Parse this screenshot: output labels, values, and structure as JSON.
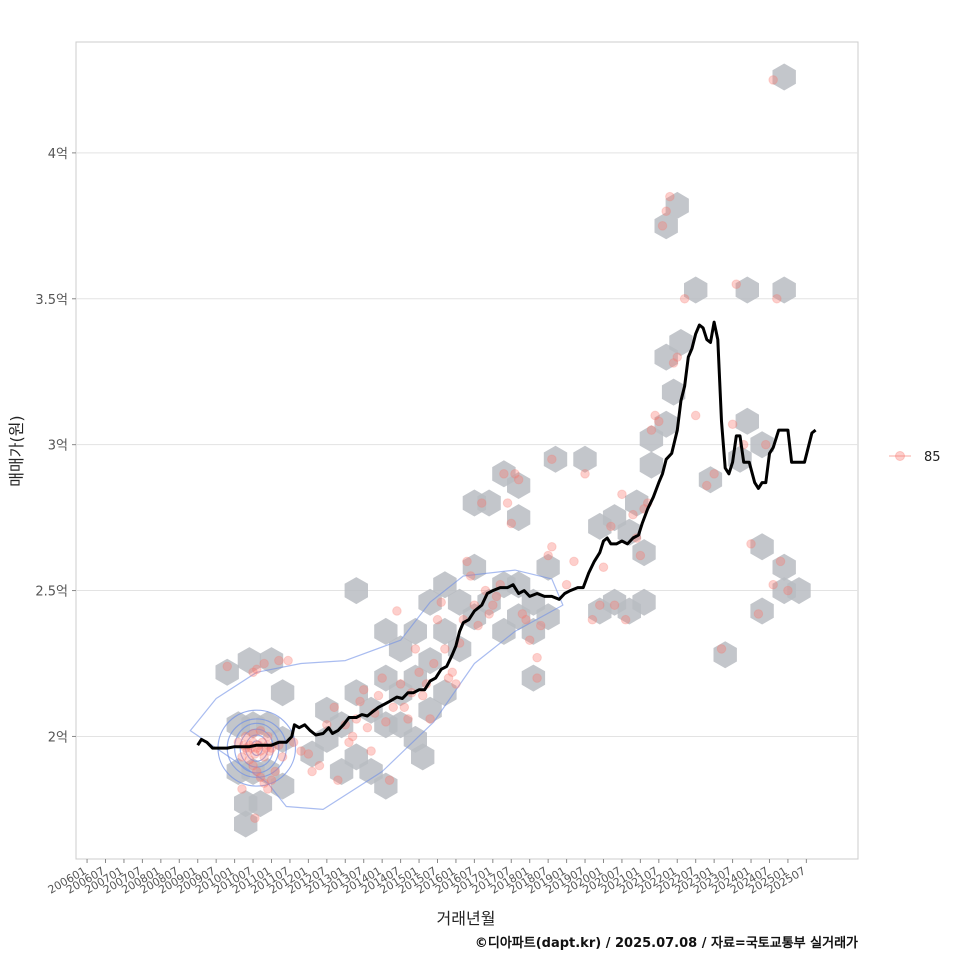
{
  "chart_data": {
    "type": "scatter",
    "xlabel": "거래년월",
    "ylabel": "매매가(원)",
    "caption": "©디아파트(dapt.kr) / 2025.07.08 / 자료=국토교통부 실거래가",
    "y_ticks": [
      {
        "value": 2.0,
        "label": "2억"
      },
      {
        "value": 2.5,
        "label": "2.5억"
      },
      {
        "value": 3.0,
        "label": "3억"
      },
      {
        "value": 3.5,
        "label": "3.5억"
      },
      {
        "value": 4.0,
        "label": "4억"
      }
    ],
    "x_ticks": [
      "200601",
      "200607",
      "200701",
      "200707",
      "200801",
      "200807",
      "200901",
      "200907",
      "201001",
      "201007",
      "201101",
      "201107",
      "201201",
      "201207",
      "201301",
      "201307",
      "201401",
      "201407",
      "201501",
      "201507",
      "201601",
      "201607",
      "201701",
      "201707",
      "201801",
      "201807",
      "201901",
      "201907",
      "202001",
      "202007",
      "202101",
      "202107",
      "202201",
      "202207",
      "202301",
      "202307",
      "202401",
      "202407",
      "202501",
      "202507"
    ],
    "ylim": [
      1.58,
      4.38
    ],
    "xlim": [
      2005.7,
      2026.9
    ],
    "grid": true,
    "legend": {
      "position": "right",
      "entries": [
        {
          "name": "85",
          "color": "#f8766d"
        }
      ]
    },
    "colors": {
      "points": "#f8766d",
      "hex": "#b8bcc2",
      "trend": "#000000",
      "density": "#6f8fe6"
    },
    "points": [
      [
        2010.25,
        1.97
      ],
      [
        2010.3,
        1.96
      ],
      [
        2010.35,
        1.95
      ],
      [
        2010.4,
        1.97
      ],
      [
        2010.45,
        1.96
      ],
      [
        2010.5,
        1.98
      ],
      [
        2010.55,
        1.94
      ],
      [
        2010.6,
        1.96
      ],
      [
        2010.65,
        1.97
      ],
      [
        2010.7,
        1.95
      ],
      [
        2010.75,
        1.98
      ],
      [
        2010.8,
        1.93
      ],
      [
        2010.85,
        1.96
      ],
      [
        2010.9,
        1.97
      ],
      [
        2010.95,
        1.95
      ],
      [
        2011.0,
        1.96
      ],
      [
        2010.4,
        1.92
      ],
      [
        2010.5,
        1.9
      ],
      [
        2010.6,
        1.88
      ],
      [
        2010.7,
        1.86
      ],
      [
        2010.8,
        1.84
      ],
      [
        2010.9,
        1.82
      ],
      [
        2011.0,
        1.85
      ],
      [
        2011.1,
        1.88
      ],
      [
        2010.3,
        2.0
      ],
      [
        2010.5,
        2.01
      ],
      [
        2010.7,
        2.02
      ],
      [
        2010.9,
        2.0
      ],
      [
        2011.2,
        1.97
      ],
      [
        2011.3,
        1.93
      ],
      [
        2010.2,
        1.93
      ],
      [
        2010.1,
        1.98
      ],
      [
        2009.8,
        2.24
      ],
      [
        2010.5,
        2.22
      ],
      [
        2010.8,
        2.25
      ],
      [
        2011.2,
        2.26
      ],
      [
        2011.45,
        2.26
      ],
      [
        2010.6,
        2.23
      ],
      [
        2010.55,
        1.72
      ],
      [
        2010.2,
        1.82
      ],
      [
        2011.6,
        1.98
      ],
      [
        2011.8,
        1.95
      ],
      [
        2012.0,
        1.94
      ],
      [
        2012.1,
        1.88
      ],
      [
        2012.3,
        1.9
      ],
      [
        2012.5,
        2.04
      ],
      [
        2012.7,
        2.1
      ],
      [
        2012.8,
        1.85
      ],
      [
        2013.0,
        2.04
      ],
      [
        2013.1,
        1.98
      ],
      [
        2013.2,
        2.0
      ],
      [
        2013.3,
        2.06
      ],
      [
        2013.4,
        2.12
      ],
      [
        2013.5,
        2.16
      ],
      [
        2013.6,
        2.03
      ],
      [
        2013.7,
        1.95
      ],
      [
        2013.8,
        2.08
      ],
      [
        2013.9,
        2.14
      ],
      [
        2014.0,
        2.2
      ],
      [
        2014.1,
        2.05
      ],
      [
        2014.2,
        1.85
      ],
      [
        2014.3,
        2.1
      ],
      [
        2014.4,
        2.43
      ],
      [
        2014.5,
        2.18
      ],
      [
        2014.6,
        2.1
      ],
      [
        2014.7,
        2.06
      ],
      [
        2014.8,
        2.15
      ],
      [
        2014.9,
        2.3
      ],
      [
        2015.0,
        2.22
      ],
      [
        2015.1,
        2.14
      ],
      [
        2015.2,
        2.18
      ],
      [
        2015.3,
        2.06
      ],
      [
        2015.4,
        2.25
      ],
      [
        2015.5,
        2.4
      ],
      [
        2015.6,
        2.46
      ],
      [
        2015.7,
        2.3
      ],
      [
        2015.8,
        2.2
      ],
      [
        2015.9,
        2.22
      ],
      [
        2016.0,
        2.18
      ],
      [
        2016.1,
        2.32
      ],
      [
        2016.2,
        2.4
      ],
      [
        2016.3,
        2.6
      ],
      [
        2016.4,
        2.55
      ],
      [
        2016.5,
        2.45
      ],
      [
        2016.6,
        2.38
      ],
      [
        2016.7,
        2.8
      ],
      [
        2016.8,
        2.5
      ],
      [
        2016.9,
        2.42
      ],
      [
        2017.0,
        2.45
      ],
      [
        2017.1,
        2.48
      ],
      [
        2017.2,
        2.52
      ],
      [
        2017.3,
        2.9
      ],
      [
        2017.4,
        2.8
      ],
      [
        2017.5,
        2.73
      ],
      [
        2017.6,
        2.9
      ],
      [
        2017.7,
        2.88
      ],
      [
        2017.8,
        2.42
      ],
      [
        2017.9,
        2.4
      ],
      [
        2018.0,
        2.33
      ],
      [
        2018.2,
        2.27
      ],
      [
        2018.3,
        2.38
      ],
      [
        2018.5,
        2.62
      ],
      [
        2018.6,
        2.65
      ],
      [
        2018.2,
        2.2
      ],
      [
        2018.6,
        2.95
      ],
      [
        2019.0,
        2.52
      ],
      [
        2019.2,
        2.6
      ],
      [
        2019.5,
        2.9
      ],
      [
        2019.7,
        2.4
      ],
      [
        2019.9,
        2.45
      ],
      [
        2020.0,
        2.58
      ],
      [
        2020.2,
        2.72
      ],
      [
        2020.3,
        2.45
      ],
      [
        2020.5,
        2.83
      ],
      [
        2020.6,
        2.4
      ],
      [
        2020.8,
        2.76
      ],
      [
        2020.9,
        2.68
      ],
      [
        2021.0,
        2.62
      ],
      [
        2021.1,
        2.78
      ],
      [
        2021.2,
        2.8
      ],
      [
        2021.3,
        3.05
      ],
      [
        2021.4,
        3.1
      ],
      [
        2021.5,
        3.08
      ],
      [
        2021.6,
        3.75
      ],
      [
        2021.7,
        3.8
      ],
      [
        2021.8,
        3.85
      ],
      [
        2021.9,
        3.28
      ],
      [
        2022.0,
        3.3
      ],
      [
        2022.2,
        3.5
      ],
      [
        2022.5,
        3.1
      ],
      [
        2022.8,
        2.86
      ],
      [
        2023.0,
        2.9
      ],
      [
        2023.2,
        2.3
      ],
      [
        2023.5,
        3.07
      ],
      [
        2023.6,
        3.55
      ],
      [
        2023.8,
        3.0
      ],
      [
        2024.0,
        2.66
      ],
      [
        2024.2,
        2.42
      ],
      [
        2024.4,
        3.0
      ],
      [
        2024.6,
        2.52
      ],
      [
        2024.7,
        3.5
      ],
      [
        2024.8,
        2.6
      ],
      [
        2025.0,
        2.5
      ],
      [
        2024.6,
        4.25
      ]
    ],
    "hex_centers": [
      [
        2009.8,
        2.22
      ],
      [
        2010.4,
        2.26
      ],
      [
        2011.0,
        2.26
      ],
      [
        2011.3,
        2.15
      ],
      [
        2010.1,
        2.04
      ],
      [
        2010.5,
        2.04
      ],
      [
        2010.9,
        2.04
      ],
      [
        2011.3,
        1.99
      ],
      [
        2010.1,
        1.88
      ],
      [
        2010.5,
        1.88
      ],
      [
        2010.9,
        1.88
      ],
      [
        2011.3,
        1.83
      ],
      [
        2010.3,
        1.77
      ],
      [
        2010.7,
        1.77
      ],
      [
        2010.3,
        1.7
      ],
      [
        2012.1,
        1.94
      ],
      [
        2012.5,
        2.09
      ],
      [
        2012.9,
        2.04
      ],
      [
        2012.5,
        1.99
      ],
      [
        2012.9,
        1.88
      ],
      [
        2013.3,
        2.15
      ],
      [
        2013.7,
        2.09
      ],
      [
        2013.3,
        1.93
      ],
      [
        2013.7,
        1.88
      ],
      [
        2014.1,
        2.2
      ],
      [
        2014.5,
        2.15
      ],
      [
        2014.1,
        2.04
      ],
      [
        2014.5,
        2.04
      ],
      [
        2014.1,
        1.83
      ],
      [
        2013.3,
        2.5
      ],
      [
        2014.1,
        2.36
      ],
      [
        2014.5,
        2.3
      ],
      [
        2014.9,
        2.36
      ],
      [
        2014.9,
        2.2
      ],
      [
        2015.3,
        2.26
      ],
      [
        2015.3,
        2.09
      ],
      [
        2014.9,
        1.99
      ],
      [
        2015.1,
        1.93
      ],
      [
        2015.7,
        2.15
      ],
      [
        2015.7,
        2.36
      ],
      [
        2015.3,
        2.46
      ],
      [
        2015.7,
        2.52
      ],
      [
        2016.1,
        2.46
      ],
      [
        2016.1,
        2.3
      ],
      [
        2016.5,
        2.58
      ],
      [
        2016.5,
        2.41
      ],
      [
        2016.9,
        2.46
      ],
      [
        2017.3,
        2.52
      ],
      [
        2017.7,
        2.52
      ],
      [
        2017.3,
        2.36
      ],
      [
        2017.7,
        2.41
      ],
      [
        2018.1,
        2.46
      ],
      [
        2018.1,
        2.36
      ],
      [
        2018.5,
        2.41
      ],
      [
        2018.5,
        2.58
      ],
      [
        2018.1,
        2.2
      ],
      [
        2016.5,
        2.8
      ],
      [
        2016.9,
        2.8
      ],
      [
        2017.3,
        2.9
      ],
      [
        2017.7,
        2.86
      ],
      [
        2017.7,
        2.75
      ],
      [
        2018.7,
        2.95
      ],
      [
        2019.5,
        2.95
      ],
      [
        2019.9,
        2.72
      ],
      [
        2020.3,
        2.75
      ],
      [
        2020.7,
        2.7
      ],
      [
        2019.9,
        2.43
      ],
      [
        2020.3,
        2.46
      ],
      [
        2020.7,
        2.43
      ],
      [
        2021.1,
        2.46
      ],
      [
        2021.1,
        2.63
      ],
      [
        2020.9,
        2.8
      ],
      [
        2021.3,
        2.93
      ],
      [
        2021.3,
        3.02
      ],
      [
        2021.7,
        3.07
      ],
      [
        2021.9,
        3.18
      ],
      [
        2021.7,
        3.3
      ],
      [
        2022.1,
        3.35
      ],
      [
        2021.7,
        3.75
      ],
      [
        2022.0,
        3.82
      ],
      [
        2022.5,
        3.53
      ],
      [
        2022.9,
        2.88
      ],
      [
        2023.3,
        2.28
      ],
      [
        2023.7,
        2.95
      ],
      [
        2023.9,
        3.53
      ],
      [
        2023.9,
        3.08
      ],
      [
        2024.3,
        2.43
      ],
      [
        2024.3,
        2.65
      ],
      [
        2024.3,
        3.0
      ],
      [
        2024.9,
        3.53
      ],
      [
        2024.9,
        2.5
      ],
      [
        2024.9,
        2.58
      ],
      [
        2025.3,
        2.5
      ],
      [
        2024.9,
        4.26
      ]
    ],
    "trend": [
      [
        2009.0,
        1.97
      ],
      [
        2009.1,
        1.99
      ],
      [
        2009.25,
        1.98
      ],
      [
        2009.4,
        1.96
      ],
      [
        2009.6,
        1.96
      ],
      [
        2009.8,
        1.96
      ],
      [
        2010.0,
        1.965
      ],
      [
        2010.2,
        1.965
      ],
      [
        2010.4,
        1.965
      ],
      [
        2010.6,
        1.97
      ],
      [
        2010.8,
        1.97
      ],
      [
        2011.0,
        1.97
      ],
      [
        2011.2,
        1.98
      ],
      [
        2011.4,
        1.98
      ],
      [
        2011.55,
        2.0
      ],
      [
        2011.62,
        2.04
      ],
      [
        2011.75,
        2.03
      ],
      [
        2011.9,
        2.04
      ],
      [
        2012.05,
        2.02
      ],
      [
        2012.2,
        2.005
      ],
      [
        2012.4,
        2.01
      ],
      [
        2012.55,
        2.03
      ],
      [
        2012.65,
        2.01
      ],
      [
        2012.8,
        2.02
      ],
      [
        2012.95,
        2.04
      ],
      [
        2013.1,
        2.065
      ],
      [
        2013.3,
        2.065
      ],
      [
        2013.45,
        2.075
      ],
      [
        2013.6,
        2.07
      ],
      [
        2013.75,
        2.085
      ],
      [
        2013.9,
        2.1
      ],
      [
        2014.05,
        2.11
      ],
      [
        2014.2,
        2.12
      ],
      [
        2014.4,
        2.135
      ],
      [
        2014.55,
        2.13
      ],
      [
        2014.7,
        2.15
      ],
      [
        2014.85,
        2.15
      ],
      [
        2015.0,
        2.16
      ],
      [
        2015.15,
        2.16
      ],
      [
        2015.3,
        2.19
      ],
      [
        2015.45,
        2.2
      ],
      [
        2015.6,
        2.23
      ],
      [
        2015.75,
        2.24
      ],
      [
        2015.9,
        2.28
      ],
      [
        2016.0,
        2.31
      ],
      [
        2016.1,
        2.36
      ],
      [
        2016.2,
        2.39
      ],
      [
        2016.35,
        2.4
      ],
      [
        2016.5,
        2.43
      ],
      [
        2016.7,
        2.45
      ],
      [
        2016.85,
        2.49
      ],
      [
        2017.0,
        2.5
      ],
      [
        2017.2,
        2.51
      ],
      [
        2017.4,
        2.51
      ],
      [
        2017.55,
        2.52
      ],
      [
        2017.7,
        2.49
      ],
      [
        2017.85,
        2.5
      ],
      [
        2018.0,
        2.48
      ],
      [
        2018.2,
        2.49
      ],
      [
        2018.4,
        2.48
      ],
      [
        2018.6,
        2.48
      ],
      [
        2018.8,
        2.47
      ],
      [
        2018.95,
        2.49
      ],
      [
        2019.1,
        2.5
      ],
      [
        2019.3,
        2.51
      ],
      [
        2019.45,
        2.51
      ],
      [
        2019.6,
        2.56
      ],
      [
        2019.75,
        2.6
      ],
      [
        2019.9,
        2.63
      ],
      [
        2020.0,
        2.67
      ],
      [
        2020.1,
        2.68
      ],
      [
        2020.2,
        2.66
      ],
      [
        2020.35,
        2.66
      ],
      [
        2020.5,
        2.67
      ],
      [
        2020.65,
        2.66
      ],
      [
        2020.8,
        2.68
      ],
      [
        2020.95,
        2.69
      ],
      [
        2021.05,
        2.73
      ],
      [
        2021.2,
        2.78
      ],
      [
        2021.35,
        2.82
      ],
      [
        2021.5,
        2.87
      ],
      [
        2021.6,
        2.9
      ],
      [
        2021.7,
        2.95
      ],
      [
        2021.85,
        2.97
      ],
      [
        2022.0,
        3.05
      ],
      [
        2022.1,
        3.15
      ],
      [
        2022.2,
        3.2
      ],
      [
        2022.3,
        3.3
      ],
      [
        2022.4,
        3.33
      ],
      [
        2022.5,
        3.38
      ],
      [
        2022.6,
        3.41
      ],
      [
        2022.7,
        3.4
      ],
      [
        2022.8,
        3.36
      ],
      [
        2022.9,
        3.35
      ],
      [
        2023.0,
        3.42
      ],
      [
        2023.1,
        3.36
      ],
      [
        2023.2,
        3.08
      ],
      [
        2023.3,
        2.92
      ],
      [
        2023.4,
        2.9
      ],
      [
        2023.5,
        2.94
      ],
      [
        2023.6,
        3.03
      ],
      [
        2023.7,
        3.03
      ],
      [
        2023.8,
        2.94
      ],
      [
        2023.95,
        2.94
      ],
      [
        2024.1,
        2.87
      ],
      [
        2024.2,
        2.85
      ],
      [
        2024.3,
        2.87
      ],
      [
        2024.4,
        2.87
      ],
      [
        2024.5,
        2.97
      ],
      [
        2024.6,
        2.99
      ],
      [
        2024.75,
        3.05
      ],
      [
        2024.9,
        3.05
      ],
      [
        2025.0,
        3.05
      ],
      [
        2025.1,
        2.94
      ],
      [
        2025.3,
        2.94
      ],
      [
        2025.45,
        2.94
      ],
      [
        2025.55,
        2.99
      ],
      [
        2025.65,
        3.04
      ],
      [
        2025.75,
        3.05
      ]
    ],
    "density_center": [
      2010.6,
      1.96
    ],
    "density_contours": [
      {
        "rx": 0.15,
        "ry": 0.025
      },
      {
        "rx": 0.3,
        "ry": 0.045
      },
      {
        "rx": 0.45,
        "ry": 0.065
      },
      {
        "rx": 0.6,
        "ry": 0.085
      },
      {
        "rx": 0.8,
        "ry": 0.1
      },
      {
        "rx": 1.05,
        "ry": 0.13
      }
    ],
    "density_tail": [
      [
        2008.8,
        2.02
      ],
      [
        2009.5,
        2.13
      ],
      [
        2010.6,
        2.22
      ],
      [
        2011.8,
        2.25
      ],
      [
        2013.0,
        2.26
      ],
      [
        2014.5,
        2.33
      ],
      [
        2015.3,
        2.46
      ],
      [
        2016.2,
        2.55
      ],
      [
        2017.6,
        2.57
      ],
      [
        2018.6,
        2.54
      ],
      [
        2018.9,
        2.45
      ],
      [
        2017.6,
        2.36
      ],
      [
        2016.5,
        2.25
      ],
      [
        2015.4,
        2.05
      ],
      [
        2014.0,
        1.88
      ],
      [
        2012.4,
        1.75
      ],
      [
        2011.4,
        1.76
      ],
      [
        2010.9,
        1.84
      ]
    ]
  }
}
